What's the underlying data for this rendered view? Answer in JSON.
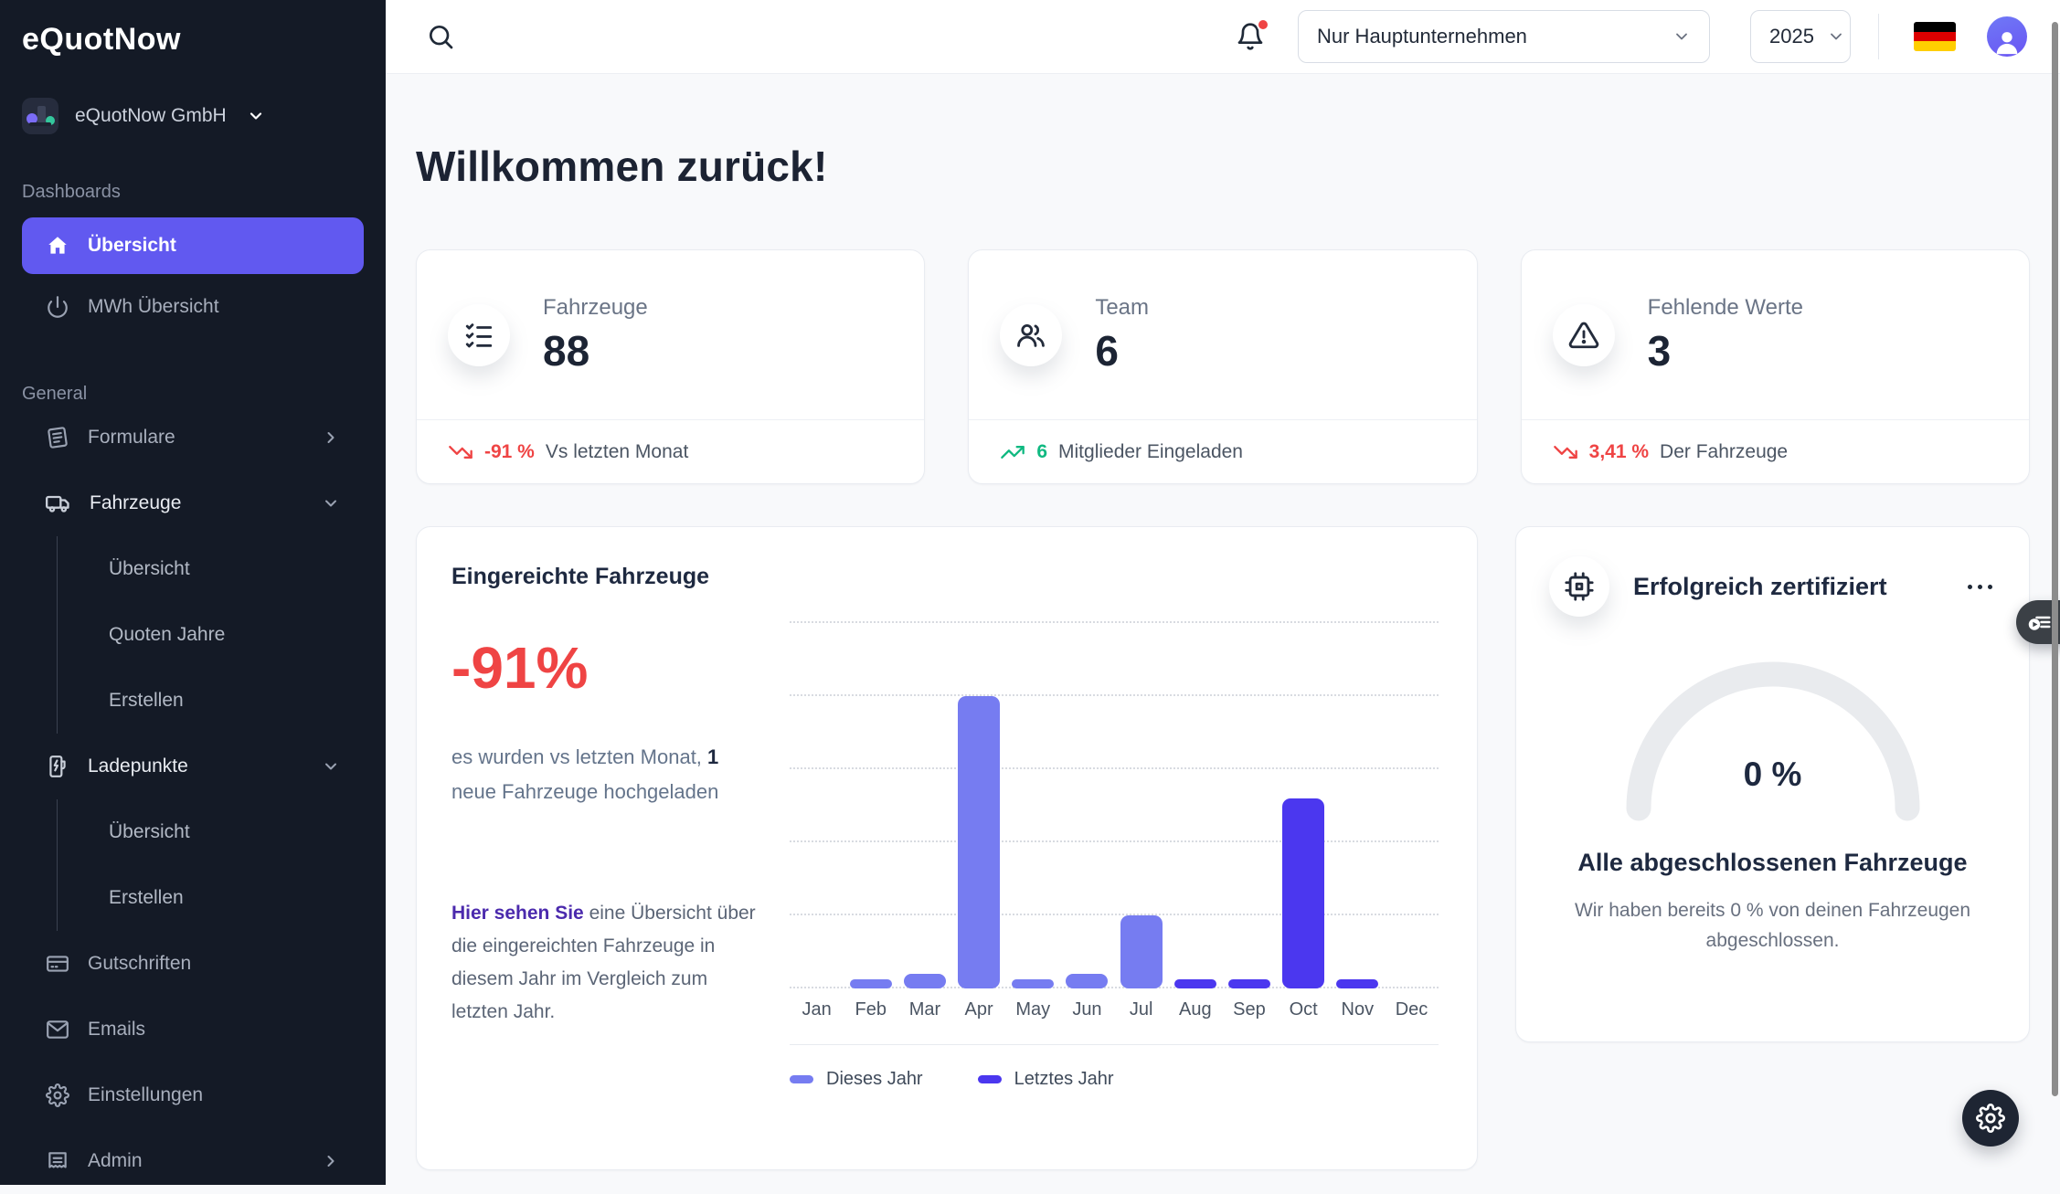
{
  "brand": {
    "logo_text": "eQuotNow"
  },
  "workspace": {
    "name": "eQuotNow GmbH"
  },
  "topbar": {
    "company_filter": "Nur Hauptunternehmen",
    "year": "2025"
  },
  "sidebar": {
    "sections": {
      "dashboards": "Dashboards",
      "general": "General"
    },
    "items": [
      {
        "label": "Übersicht",
        "active": true
      },
      {
        "label": "MWh Übersicht"
      },
      {
        "label": "Formulare"
      },
      {
        "label": "Fahrzeuge"
      },
      {
        "label": "Übersicht"
      },
      {
        "label": "Quoten Jahre"
      },
      {
        "label": "Erstellen"
      },
      {
        "label": "Ladepunkte"
      },
      {
        "label": "Übersicht"
      },
      {
        "label": "Erstellen"
      },
      {
        "label": "Gutschriften"
      },
      {
        "label": "Emails"
      },
      {
        "label": "Einstellungen"
      },
      {
        "label": "Admin"
      }
    ]
  },
  "heading": "Willkommen zurück!",
  "stats": [
    {
      "title": "Fahrzeuge",
      "value": "88",
      "trend": "-91 %",
      "trend_dir": "down",
      "footnote": "Vs letzten Monat"
    },
    {
      "title": "Team",
      "value": "6",
      "trend": "6",
      "trend_dir": "up",
      "footnote": "Mitglieder Eingeladen"
    },
    {
      "title": "Fehlende Werte",
      "value": "3",
      "trend": "3,41 %",
      "trend_dir": "down",
      "footnote": "Der Fahrzeuge"
    }
  ],
  "chart_card": {
    "title": "Eingereichte Fahrzeuge",
    "delta": "-91%",
    "desc_pre": "es wurden vs letzten Monat, ",
    "desc_bold": "1",
    "desc_post": " neue Fahrzeuge hochgeladen",
    "note_lead": "Hier sehen Sie",
    "note_rest": " eine Übersicht über die eingereichten Fahrzeuge in diesem Jahr im Vergleich zum letzten Jahr."
  },
  "chart_data": {
    "type": "bar",
    "title": "Eingereichte Fahrzeuge",
    "categories": [
      "Jan",
      "Feb",
      "Mar",
      "Apr",
      "May",
      "Jun",
      "Jul",
      "Aug",
      "Sep",
      "Oct",
      "Nov",
      "Dec"
    ],
    "series": [
      {
        "name": "Dieses Jahr",
        "color": "#767cf1",
        "values": [
          0,
          1,
          2,
          40,
          1,
          2,
          10,
          0,
          0,
          0,
          0,
          0
        ]
      },
      {
        "name": "Letztes Jahr",
        "color": "#4b37ef",
        "values": [
          0,
          0,
          0,
          0,
          0,
          0,
          0,
          1,
          1,
          26,
          1,
          0
        ]
      }
    ],
    "ylim": [
      0,
      50
    ],
    "gridlines": 6,
    "grid": "dotted-horizontal",
    "y_axis_labels": "none",
    "legend_position": "bottom-left"
  },
  "certified": {
    "title": "Erfolgreich zertifiziert",
    "percent": "0 %",
    "headline": "Alle abgeschlossenen Fahrzeuge",
    "description": "Wir haben bereits 0 % von deinen Fahrzeugen abgeschlossen."
  },
  "colors": {
    "accent": "#6159f0",
    "bar_this_year": "#767cf1",
    "bar_last_year": "#4b37ef",
    "negative": "#ef4444",
    "positive": "#10b981",
    "sidebar_bg": "#141a26"
  }
}
